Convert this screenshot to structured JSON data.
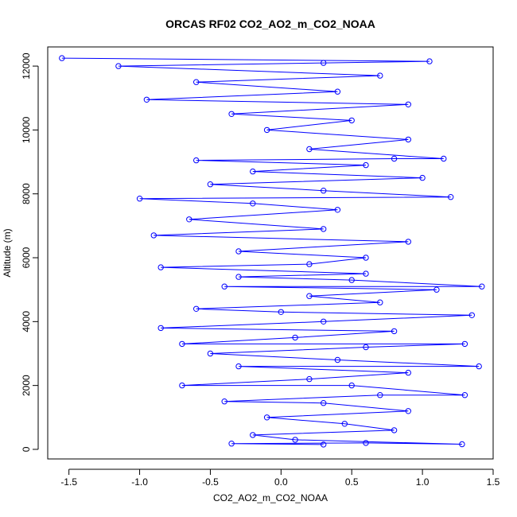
{
  "chart_data": {
    "type": "scatter",
    "title": "ORCAS RF02 CO2_AO2_m_CO2_NOAA",
    "xlabel": "CO2_AO2_m_CO2_NOAA",
    "ylabel": "Altitude (m)",
    "xlim": [
      -1.65,
      1.5
    ],
    "ylim": [
      -300,
      12600
    ],
    "x_ticks": [
      -1.5,
      -1.0,
      -0.5,
      0.0,
      0.5,
      1.0,
      1.5
    ],
    "x_tick_labels": [
      "-1.5",
      "-1.0",
      "-0.5",
      "0.0",
      "0.5",
      "1.0",
      "1.5"
    ],
    "y_ticks": [
      0,
      2000,
      4000,
      6000,
      8000,
      10000,
      12000
    ],
    "y_tick_labels": [
      "0",
      "2000",
      "4000",
      "6000",
      "8000",
      "10000",
      "12000"
    ],
    "grid": false,
    "legend": "none",
    "marker": "open-circle",
    "connected": true,
    "color": "#0000ff",
    "x_range_observed": [
      -1.55,
      1.42
    ],
    "y_range_observed": [
      150,
      12250
    ],
    "series": [
      {
        "values": [
          [
            0.3,
            150
          ],
          [
            -0.35,
            180
          ],
          [
            0.6,
            200
          ],
          [
            1.28,
            160
          ],
          [
            0.1,
            300
          ],
          [
            -0.2,
            450
          ],
          [
            0.8,
            600
          ],
          [
            0.45,
            800
          ],
          [
            -0.1,
            1000
          ],
          [
            0.9,
            1200
          ],
          [
            0.3,
            1450
          ],
          [
            -0.4,
            1500
          ],
          [
            0.7,
            1700
          ],
          [
            1.3,
            1700
          ],
          [
            0.5,
            2000
          ],
          [
            -0.7,
            2000
          ],
          [
            0.2,
            2200
          ],
          [
            0.9,
            2400
          ],
          [
            -0.3,
            2600
          ],
          [
            1.4,
            2600
          ],
          [
            0.4,
            2800
          ],
          [
            -0.5,
            3000
          ],
          [
            0.6,
            3200
          ],
          [
            1.3,
            3300
          ],
          [
            -0.7,
            3300
          ],
          [
            0.1,
            3500
          ],
          [
            0.8,
            3700
          ],
          [
            -0.85,
            3800
          ],
          [
            0.3,
            4000
          ],
          [
            1.35,
            4200
          ],
          [
            0.0,
            4300
          ],
          [
            -0.6,
            4400
          ],
          [
            0.7,
            4600
          ],
          [
            0.2,
            4800
          ],
          [
            1.1,
            5000
          ],
          [
            -0.4,
            5100
          ],
          [
            1.42,
            5100
          ],
          [
            0.5,
            5300
          ],
          [
            -0.3,
            5400
          ],
          [
            0.6,
            5500
          ],
          [
            -0.85,
            5700
          ],
          [
            0.2,
            5800
          ],
          [
            0.6,
            6000
          ],
          [
            -0.3,
            6200
          ],
          [
            0.9,
            6500
          ],
          [
            -0.9,
            6700
          ],
          [
            0.3,
            6900
          ],
          [
            -0.65,
            7200
          ],
          [
            0.4,
            7500
          ],
          [
            -0.2,
            7700
          ],
          [
            -1.0,
            7850
          ],
          [
            1.2,
            7900
          ],
          [
            0.3,
            8100
          ],
          [
            -0.5,
            8300
          ],
          [
            1.0,
            8500
          ],
          [
            -0.2,
            8700
          ],
          [
            0.6,
            8900
          ],
          [
            -0.6,
            9050
          ],
          [
            0.8,
            9100
          ],
          [
            1.15,
            9100
          ],
          [
            0.2,
            9400
          ],
          [
            0.9,
            9700
          ],
          [
            -0.1,
            10000
          ],
          [
            0.5,
            10300
          ],
          [
            -0.35,
            10500
          ],
          [
            0.9,
            10800
          ],
          [
            -0.95,
            10950
          ],
          [
            0.4,
            11200
          ],
          [
            -0.6,
            11500
          ],
          [
            0.7,
            11700
          ],
          [
            -1.15,
            12000
          ],
          [
            0.3,
            12100
          ],
          [
            1.05,
            12150
          ],
          [
            -1.55,
            12250
          ]
        ]
      }
    ]
  }
}
